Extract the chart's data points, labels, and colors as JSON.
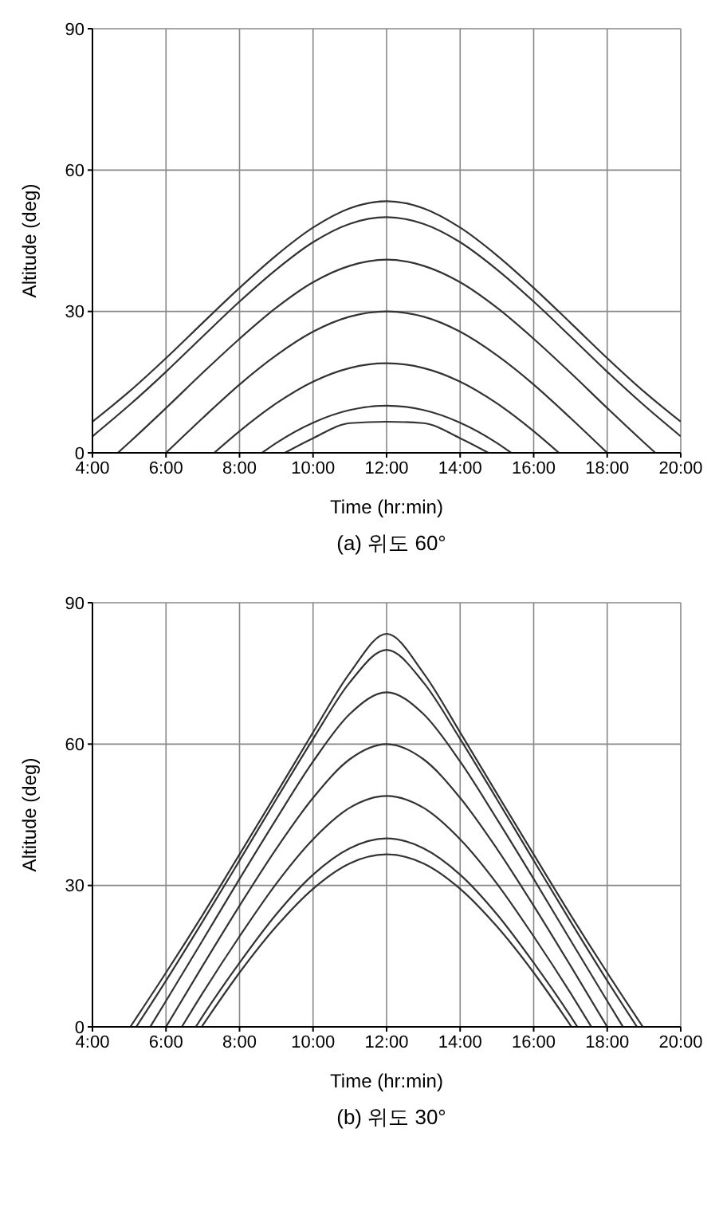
{
  "chart_data": [
    {
      "type": "line",
      "xlabel": "Time (hr:min)",
      "ylabel": "Altitude (deg)",
      "annotations": [
        "(a) 위도 60°"
      ],
      "xlim": [
        4,
        20
      ],
      "xticks": [
        {
          "value": 4,
          "label": "4:00"
        },
        {
          "value": 6,
          "label": "6:00"
        },
        {
          "value": 8,
          "label": "8:00"
        },
        {
          "value": 10,
          "label": "10:00"
        },
        {
          "value": 12,
          "label": "12:00"
        },
        {
          "value": 14,
          "label": "14:00"
        },
        {
          "value": 16,
          "label": "16:00"
        },
        {
          "value": 18,
          "label": "18:00"
        },
        {
          "value": 20,
          "label": "20:00"
        }
      ],
      "ylim": [
        0,
        90
      ],
      "yticks": [
        0,
        30,
        60,
        90
      ],
      "grid": true,
      "marker": "none",
      "line_style": "solid",
      "series": [
        {
          "color": "#333333",
          "x": [
            4,
            5,
            6,
            7,
            8,
            9,
            10,
            11,
            12,
            13,
            14,
            15,
            16,
            17,
            18,
            19,
            20
          ],
          "values": [
            6.6,
            13.0,
            20.1,
            27.6,
            35.0,
            41.9,
            47.8,
            51.9,
            53.4,
            51.9,
            47.8,
            41.9,
            35.0,
            27.6,
            20.1,
            13.0,
            6.6
          ]
        },
        {
          "color": "#333333",
          "x": [
            4,
            5,
            6,
            7,
            8,
            9,
            10,
            11,
            12,
            13,
            14,
            15,
            16,
            17,
            18,
            19,
            20
          ],
          "values": [
            3.5,
            10.1,
            17.2,
            24.7,
            32.1,
            38.9,
            44.7,
            48.6,
            50.0,
            48.6,
            44.7,
            38.9,
            32.1,
            24.7,
            17.2,
            10.1,
            3.5
          ]
        },
        {
          "color": "#333333",
          "x": [
            4.69,
            5,
            6,
            7,
            8,
            9,
            10,
            11,
            12,
            13,
            14,
            15,
            16,
            17,
            18,
            19,
            19.31
          ],
          "values": [
            0,
            2.2,
            9.5,
            17.0,
            24.2,
            30.8,
            36.2,
            39.7,
            41.0,
            39.7,
            36.2,
            30.8,
            24.2,
            17.0,
            9.5,
            2.2,
            0
          ]
        },
        {
          "color": "#333333",
          "x": [
            6,
            7,
            8,
            9,
            10,
            11,
            12,
            13,
            14,
            15,
            16,
            17,
            18
          ],
          "values": [
            0,
            7.4,
            14.5,
            20.7,
            25.7,
            28.9,
            30.0,
            28.9,
            25.7,
            20.7,
            14.5,
            7.4,
            0
          ]
        },
        {
          "color": "#333333",
          "x": [
            7.31,
            8,
            9,
            10,
            11,
            12,
            13,
            14,
            15,
            16,
            16.69
          ],
          "values": [
            0,
            4.6,
            10.5,
            15.1,
            18.0,
            19.0,
            18.0,
            15.1,
            10.5,
            4.6,
            0
          ]
        },
        {
          "color": "#333333",
          "x": [
            8.61,
            9,
            10,
            11,
            12,
            13,
            14,
            15,
            15.39
          ],
          "values": [
            0,
            2.1,
            6.4,
            9.1,
            10.0,
            9.1,
            6.4,
            2.1,
            0
          ]
        },
        {
          "color": "#333333",
          "x": [
            9.23,
            10,
            11,
            12,
            13,
            14,
            14.77
          ],
          "values": [
            0,
            3.1,
            6.3,
            6.6,
            6.3,
            3.1,
            0
          ]
        }
      ]
    },
    {
      "type": "line",
      "xlabel": "Time (hr:min)",
      "ylabel": "Altitude (deg)",
      "annotations": [
        "(b) 위도 30°"
      ],
      "xlim": [
        4,
        20
      ],
      "xticks": [
        {
          "value": 4,
          "label": "4:00"
        },
        {
          "value": 6,
          "label": "6:00"
        },
        {
          "value": 8,
          "label": "8:00"
        },
        {
          "value": 10,
          "label": "10:00"
        },
        {
          "value": 12,
          "label": "12:00"
        },
        {
          "value": 14,
          "label": "14:00"
        },
        {
          "value": 16,
          "label": "16:00"
        },
        {
          "value": 18,
          "label": "18:00"
        },
        {
          "value": 20,
          "label": "20:00"
        }
      ],
      "ylim": [
        0,
        90
      ],
      "yticks": [
        0,
        30,
        60,
        90
      ],
      "grid": true,
      "marker": "none",
      "line_style": "solid",
      "series": [
        {
          "color": "#333333",
          "x": [
            5.03,
            6,
            7,
            8,
            9,
            10,
            11,
            12,
            13,
            14,
            15,
            16,
            17,
            18,
            18.97
          ],
          "values": [
            0,
            11.5,
            23.8,
            36.6,
            49.5,
            62.5,
            75.1,
            83.4,
            75.1,
            62.5,
            49.5,
            36.6,
            23.8,
            11.5,
            0
          ]
        },
        {
          "color": "#333333",
          "x": [
            5.19,
            6,
            7,
            8,
            9,
            10,
            11,
            12,
            13,
            14,
            15,
            16,
            17,
            18,
            18.81
          ],
          "values": [
            0,
            9.8,
            22.4,
            35.3,
            48.3,
            61.1,
            73.1,
            80.0,
            73.1,
            61.1,
            48.3,
            35.3,
            22.4,
            9.8,
            0
          ]
        },
        {
          "color": "#333333",
          "x": [
            5.57,
            6,
            7,
            8,
            9,
            10,
            11,
            12,
            13,
            14,
            15,
            16,
            17,
            18,
            18.43
          ],
          "values": [
            0,
            5.5,
            18.4,
            31.4,
            44.1,
            56.3,
            66.4,
            71.0,
            66.4,
            56.3,
            44.1,
            31.4,
            18.4,
            5.5,
            0
          ]
        },
        {
          "color": "#333333",
          "x": [
            6,
            7,
            8,
            9,
            10,
            11,
            12,
            13,
            14,
            15,
            16,
            17,
            18
          ],
          "values": [
            0,
            13.0,
            25.7,
            37.8,
            48.6,
            56.8,
            60.0,
            56.8,
            48.6,
            37.8,
            25.7,
            13.0,
            0
          ]
        },
        {
          "color": "#333333",
          "x": [
            6.43,
            7,
            8,
            9,
            10,
            11,
            12,
            13,
            14,
            15,
            16,
            17,
            17.57
          ],
          "values": [
            0,
            7.2,
            19.2,
            30.4,
            39.8,
            46.5,
            49.0,
            46.5,
            39.8,
            30.4,
            19.2,
            7.2,
            0
          ]
        },
        {
          "color": "#333333",
          "x": [
            6.81,
            7,
            8,
            9,
            10,
            11,
            12,
            13,
            14,
            15,
            16,
            17,
            17.19
          ],
          "values": [
            0,
            2.3,
            13.6,
            23.9,
            32.3,
            37.9,
            40.0,
            37.9,
            32.3,
            23.9,
            13.6,
            2.3,
            0
          ]
        },
        {
          "color": "#333333",
          "x": [
            6.97,
            8,
            9,
            10,
            11,
            12,
            13,
            14,
            15,
            16,
            17.03
          ],
          "values": [
            0,
            11.5,
            21.3,
            29.3,
            34.7,
            36.6,
            34.7,
            29.3,
            21.3,
            11.5,
            0
          ]
        }
      ]
    }
  ]
}
